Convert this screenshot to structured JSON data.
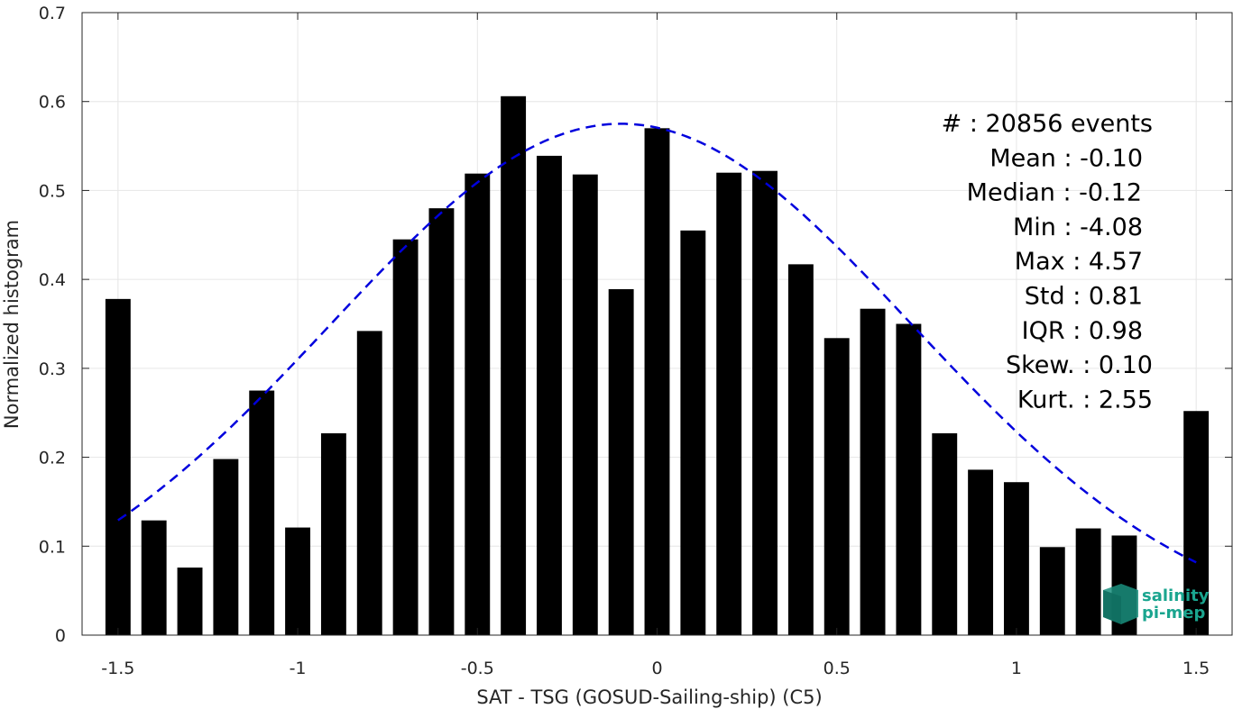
{
  "chart_data": {
    "type": "bar",
    "xlabel": "SAT - TSG (GOSUD-Sailing-ship) (C5)",
    "ylabel": "Normalized histogram",
    "xlim": [
      -1.6,
      1.6
    ],
    "ylim": [
      0,
      0.7
    ],
    "grid": true,
    "x_ticks": [
      -1.5,
      -1,
      -0.5,
      0,
      0.5,
      1,
      1.5
    ],
    "x_tick_labels": [
      "-1.5",
      "-1",
      "-0.5",
      "0",
      "0.5",
      "1",
      "1.5"
    ],
    "y_ticks": [
      0,
      0.1,
      0.2,
      0.3,
      0.4,
      0.5,
      0.6,
      0.7
    ],
    "y_tick_labels": [
      "0",
      "0.1",
      "0.2",
      "0.3",
      "0.4",
      "0.5",
      "0.6",
      "0.7"
    ],
    "bar_color": "#000000",
    "x": [
      -1.5,
      -1.4,
      -1.3,
      -1.2,
      -1.1,
      -1.0,
      -0.9,
      -0.8,
      -0.7,
      -0.6,
      -0.5,
      -0.4,
      -0.3,
      -0.2,
      -0.1,
      0.0,
      0.1,
      0.2,
      0.3,
      0.4,
      0.5,
      0.6,
      0.7,
      0.8,
      0.9,
      1.0,
      1.1,
      1.2,
      1.3,
      1.4,
      1.5
    ],
    "values": [
      0.378,
      0.129,
      0.076,
      0.198,
      0.275,
      0.121,
      0.227,
      0.342,
      0.445,
      0.48,
      0.519,
      0.606,
      0.539,
      0.518,
      0.389,
      0.57,
      0.455,
      0.52,
      0.522,
      0.417,
      0.334,
      0.367,
      0.35,
      0.227,
      0.186,
      0.172,
      0.099,
      0.12,
      0.112,
      0.0,
      0.252
    ],
    "fit_curve": {
      "type": "normal",
      "mean": -0.1,
      "std": 0.81,
      "peak": 0.575,
      "color": "#0000dd",
      "style": "dashed"
    },
    "annotations": [
      "#  : 20856 events",
      "Mean : -0.10",
      "Median : -0.12",
      "Min : -4.08",
      "Max : 4.57",
      "Std : 0.81",
      "IQR : 0.98",
      "Skew. : 0.10",
      "Kurt. : 2.55"
    ]
  },
  "logo": {
    "line1": "salinity",
    "line2": "pi-mep",
    "color": "#1aa58f"
  }
}
